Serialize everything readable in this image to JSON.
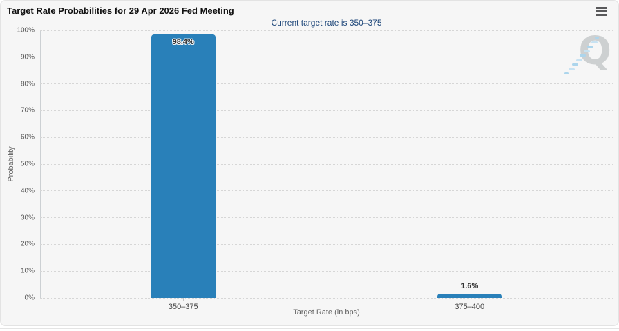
{
  "header": {
    "title": "Target Rate Probabilities for 29 Apr 2026 Fed Meeting",
    "subtitle": "Current target rate is 350–375",
    "menu_icon": "hamburger-menu-icon"
  },
  "watermark": {
    "letter": "Q"
  },
  "chart_data": {
    "type": "bar",
    "title": "Target Rate Probabilities for 29 Apr 2026 Fed Meeting",
    "subtitle": "Current target rate is 350–375",
    "categories": [
      "350–375",
      "375–400"
    ],
    "values": [
      98.4,
      1.6
    ],
    "value_labels": [
      "98.4%",
      "1.6%"
    ],
    "xlabel": "Target Rate (in bps)",
    "ylabel": "Probability",
    "ylim": [
      0,
      100
    ],
    "ytick_step": 10,
    "ytick_labels": [
      "0%",
      "10%",
      "20%",
      "30%",
      "40%",
      "50%",
      "60%",
      "70%",
      "80%",
      "90%",
      "100%"
    ],
    "grid": "horizontal-dotted",
    "legend": "none",
    "bar_color": "#2980b9"
  },
  "colors": {
    "bar": "#2980b9",
    "subtitle_text": "#1d4679",
    "panel_background": "#f6f6f6",
    "gridline": "#d6d6d6",
    "watermark_letter": "#c9cccd",
    "watermark_dash": "#a5d2ec"
  }
}
